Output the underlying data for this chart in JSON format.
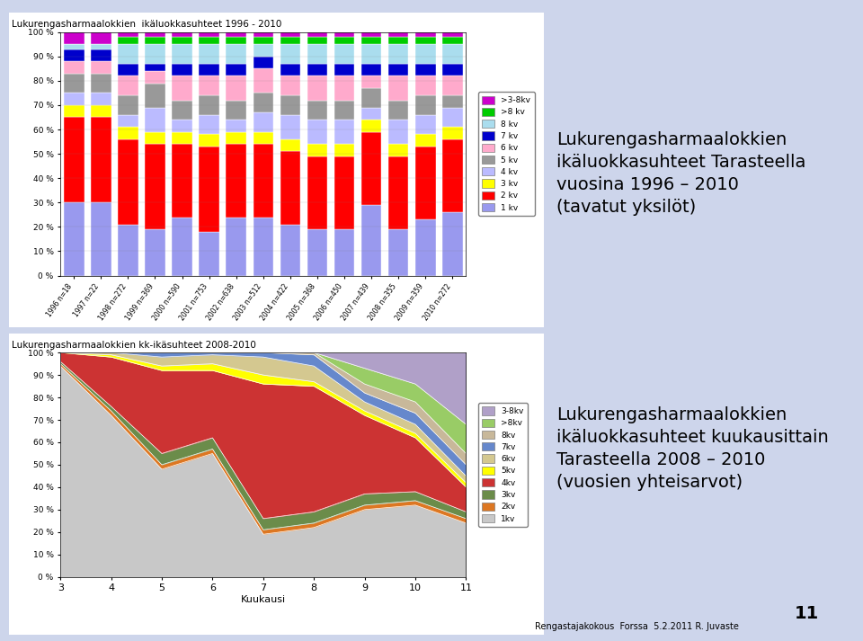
{
  "title1": "Lukurengasharmaalokkien  ikäluokkasuhteet 1996 - 2010",
  "title2": "Lukurengasharmaalokkien kk-ikäsuhteet 2008-2010",
  "xlabel2": "Kuukausi",
  "bg_color": "#cdd5eb",
  "chart_bg": "#ffffff",
  "right_text1_lines": [
    "Lukurengasharmaalokkien",
    "ikäluokkasuhteet Tarasteella",
    "vuosina 1996 – 2010",
    "(tavatut yksilöt)"
  ],
  "right_text2_lines": [
    "Lukurengasharmaalokkien",
    "ikäluokkasuhteet kuukausittain",
    "Tarasteella 2008 – 2010",
    "(vuosien yhteisarvot)"
  ],
  "footer": "Rengastajakokous  Forssa  5.2.2011 R. Juvaste",
  "page_num": "11",
  "bar_years": [
    "1996 n=18",
    "1997 n=22",
    "1998 n=272",
    "1999 n=369",
    "2000 n=590",
    "2001 n=753",
    "2002 n=638",
    "2003 n=512",
    "2004 n=422",
    "2005 n=368",
    "2006 n=450",
    "2007 n=439",
    "2008 n=355",
    "2009 n=359",
    "2010 n=272"
  ],
  "bar_categories": [
    ">3-8kv",
    ">8 kv",
    "8 kv",
    "7 kv",
    "6 kv",
    "5 kv",
    "4 kv",
    "3 kv",
    "2 kv",
    "1 kv"
  ],
  "bar_colors": [
    "#cc00cc",
    "#00cc00",
    "#aaddee",
    "#0000cc",
    "#ffaacc",
    "#999999",
    "#bbbbff",
    "#ffff00",
    "#ff0000",
    "#9999ee"
  ],
  "bar_data_from_bottom": {
    "1 kv": [
      30,
      30,
      21,
      19,
      24,
      18,
      24,
      24,
      21,
      19,
      19,
      29,
      19,
      23,
      26
    ],
    "2 kv": [
      35,
      35,
      35,
      35,
      30,
      35,
      30,
      30,
      30,
      30,
      30,
      30,
      30,
      30,
      30
    ],
    "3 kv": [
      5,
      5,
      5,
      5,
      5,
      5,
      5,
      5,
      5,
      5,
      5,
      5,
      5,
      5,
      5
    ],
    "4 kv": [
      5,
      5,
      5,
      10,
      5,
      8,
      5,
      8,
      10,
      10,
      10,
      5,
      10,
      8,
      8
    ],
    "5 kv": [
      8,
      8,
      8,
      10,
      8,
      8,
      8,
      8,
      8,
      8,
      8,
      8,
      8,
      8,
      5
    ],
    "6 kv": [
      5,
      5,
      8,
      5,
      10,
      8,
      10,
      10,
      8,
      10,
      10,
      5,
      10,
      8,
      8
    ],
    "7 kv": [
      5,
      5,
      5,
      3,
      5,
      5,
      5,
      5,
      5,
      5,
      5,
      5,
      5,
      5,
      5
    ],
    "8 kv": [
      2,
      2,
      8,
      8,
      8,
      8,
      8,
      5,
      8,
      8,
      8,
      8,
      8,
      8,
      8
    ],
    ">8 kv": [
      0,
      0,
      3,
      3,
      3,
      3,
      3,
      3,
      3,
      3,
      3,
      3,
      3,
      3,
      3
    ],
    ">3-8kv": [
      5,
      5,
      2,
      2,
      2,
      2,
      2,
      2,
      2,
      2,
      2,
      2,
      2,
      2,
      2
    ]
  },
  "bar_stack_order": [
    "1 kv",
    "2 kv",
    "3 kv",
    "4 kv",
    "5 kv",
    "6 kv",
    "7 kv",
    "8 kv",
    ">8 kv",
    ">3-8kv"
  ],
  "bar_stack_colors": [
    "#9999ee",
    "#ff0000",
    "#ffff00",
    "#bbbbff",
    "#999999",
    "#ffaacc",
    "#0000cc",
    "#aaddee",
    "#00cc00",
    "#cc00cc"
  ],
  "area_months": [
    3,
    4,
    5,
    6,
    7,
    8,
    9,
    10,
    11
  ],
  "area_stack_order": [
    "1kv",
    "2kv",
    "3kv",
    "4kv",
    "5kv",
    "6kv",
    "7kv",
    "8kv",
    ">8kv",
    "3-8kv"
  ],
  "area_stack_colors": [
    "#c8c8c8",
    "#dd7722",
    "#6b8c4a",
    "#cc3333",
    "#ffff00",
    "#d4c890",
    "#6688cc",
    "#c8b89a",
    "#99cc66",
    "#b0a0c8"
  ],
  "area_data": {
    "1kv": [
      94,
      72,
      48,
      55,
      19,
      22,
      30,
      32,
      24
    ],
    "2kv": [
      1,
      2,
      2,
      2,
      2,
      2,
      2,
      2,
      2
    ],
    "3kv": [
      1,
      2,
      5,
      5,
      5,
      5,
      5,
      4,
      3
    ],
    "4kv": [
      4,
      22,
      37,
      30,
      60,
      56,
      35,
      24,
      11
    ],
    "5kv": [
      0,
      1,
      2,
      3,
      4,
      2,
      2,
      2,
      2
    ],
    "6kv": [
      0,
      1,
      4,
      4,
      8,
      7,
      4,
      4,
      3
    ],
    "7kv": [
      0,
      0,
      2,
      1,
      2,
      5,
      4,
      5,
      5
    ],
    "8kv": [
      0,
      0,
      0,
      0,
      0,
      1,
      4,
      5,
      5
    ],
    ">8kv": [
      0,
      0,
      0,
      0,
      0,
      0,
      7,
      8,
      13
    ],
    "3-8kv": [
      0,
      0,
      0,
      0,
      0,
      0,
      7,
      14,
      32
    ]
  },
  "area_legend_labels": [
    "3-8kv",
    ">8kv",
    "8kv",
    "7kv",
    "6kv",
    "5kv",
    "4kv",
    "3kv",
    "2kv",
    "1kv"
  ],
  "area_legend_colors": [
    "#b0a0c8",
    "#99cc66",
    "#c8b89a",
    "#6688cc",
    "#d4c890",
    "#ffff00",
    "#cc3333",
    "#6b8c4a",
    "#dd7722",
    "#c8c8c8"
  ]
}
